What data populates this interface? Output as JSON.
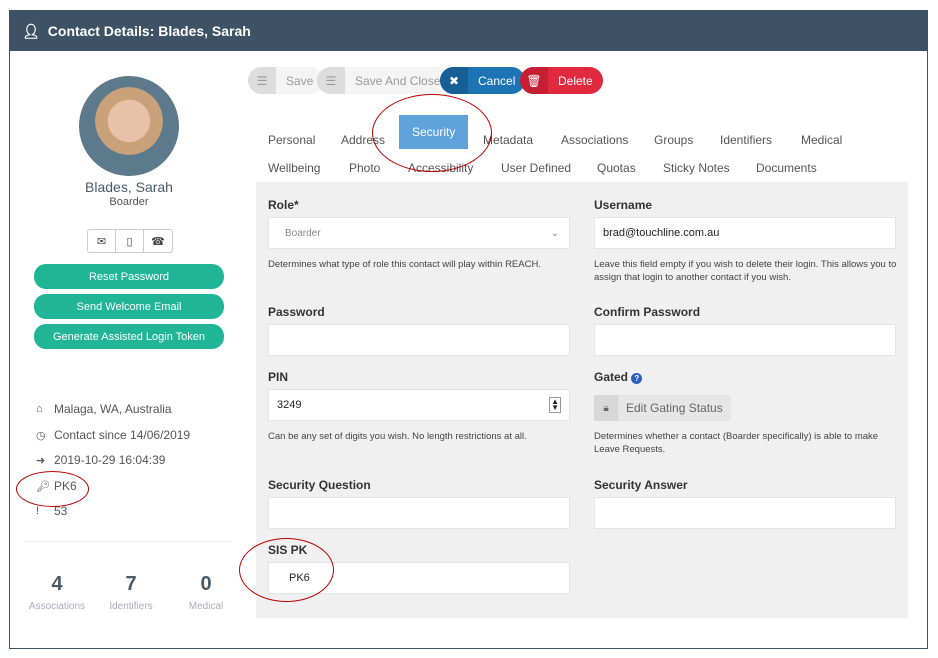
{
  "window": {
    "title": "Contact Details: Blades, Sarah"
  },
  "profile": {
    "name": "Blades, Sarah",
    "role": "Boarder"
  },
  "actions": {
    "reset_password": "Reset Password",
    "send_welcome": "Send Welcome Email",
    "assisted_token": "Generate Assisted Login Token"
  },
  "info": {
    "location": "Malaga, WA, Australia",
    "contact_since": "Contact since 14/06/2019",
    "last_login": "2019-10-29 16:04:39",
    "pk": "PK6",
    "id": "53"
  },
  "stats": [
    {
      "value": "4",
      "label": "Associations"
    },
    {
      "value": "7",
      "label": "Identifiers"
    },
    {
      "value": "0",
      "label": "Medical"
    }
  ],
  "toolbar": {
    "save": "Save",
    "save_close": "Save And Close",
    "cancel": "Cancel",
    "delete": "Delete"
  },
  "tabs": [
    "Personal",
    "Address",
    "Security",
    "Metadata",
    "Associations",
    "Groups",
    "Identifiers",
    "Medical",
    "Wellbeing",
    "Photo",
    "Accessibility",
    "User Defined",
    "Quotas",
    "Sticky Notes",
    "Documents"
  ],
  "active_tab": "Security",
  "form": {
    "role_label": "Role*",
    "role_value": "Boarder",
    "role_help": "Determines what type of role this contact will play within REACH.",
    "username_label": "Username",
    "username_value": "brad@touchline.com.au",
    "username_help": "Leave this field empty if you wish to delete their login. This allows you to assign that login to another contact if you wish.",
    "password_label": "Password",
    "confirm_label": "Confirm Password",
    "pin_label": "PIN",
    "pin_value": "3249",
    "pin_help": "Can be any set of digits you wish. No length restrictions at all.",
    "gated_label": "Gated",
    "gated_button": "Edit Gating Status",
    "gated_help": "Determines whether a contact (Boarder specifically) is able to make Leave Requests.",
    "sq_label": "Security Question",
    "sa_label": "Security Answer",
    "sispk_label": "SIS PK",
    "sispk_value": "PK6"
  },
  "colors": {
    "titlebar": "#3e5266",
    "green": "#1fb596",
    "cancel": "#1c74b5",
    "delete": "#e0293f",
    "active_tab": "#5fa3dd"
  }
}
